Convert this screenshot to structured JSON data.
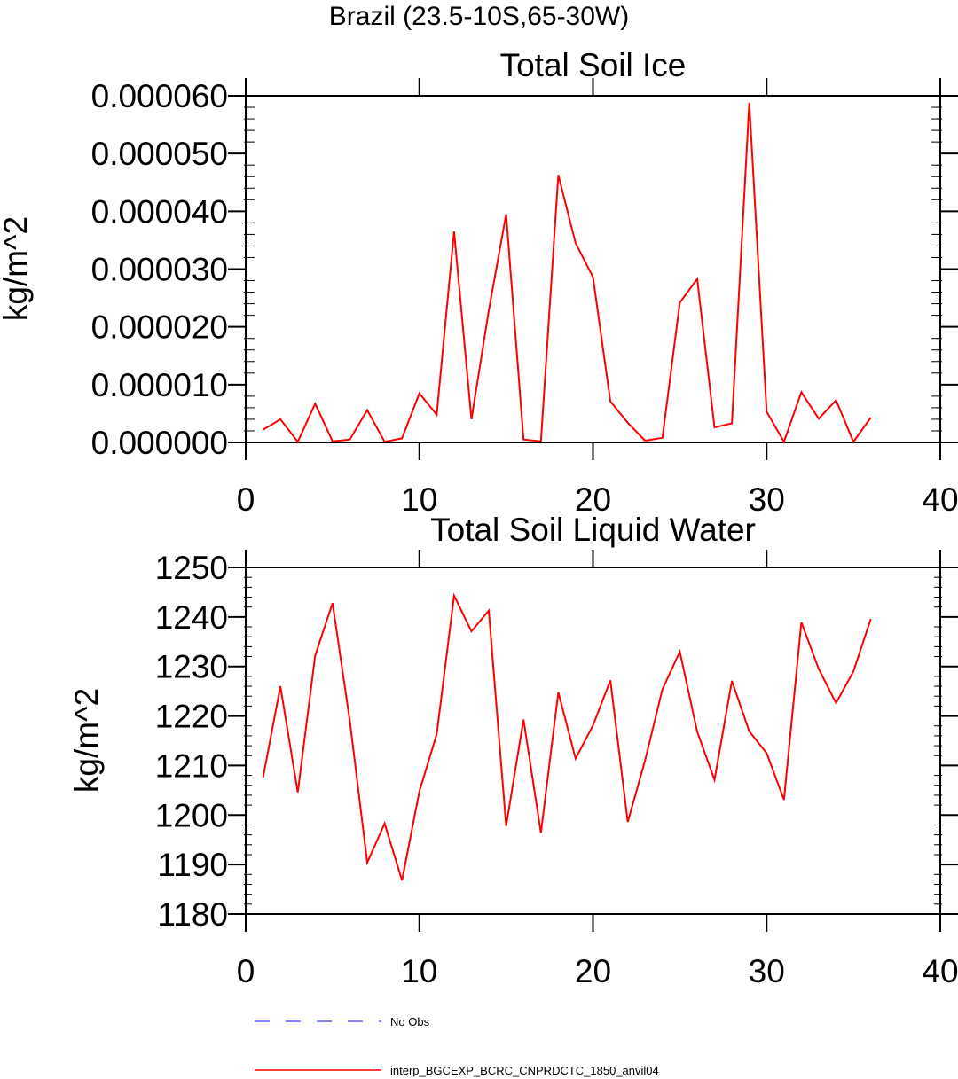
{
  "supertitle": "Brazil (23.5-10S,65-30W)",
  "chart_data": [
    {
      "type": "line",
      "title": "Total Soil Ice",
      "xlabel": "",
      "ylabel": "kg/m^2",
      "xlim": [
        0,
        40
      ],
      "ylim": [
        0,
        6e-05
      ],
      "xticks": [
        0,
        10,
        20,
        30,
        40
      ],
      "xtick_labels": [
        "0",
        "10",
        "20",
        "30",
        "40"
      ],
      "yticks": [
        0,
        1e-05,
        2e-05,
        3e-05,
        4e-05,
        5e-05,
        6e-05
      ],
      "ytick_labels": [
        "0.000000",
        "0.000010",
        "0.000020",
        "0.000030",
        "0.000040",
        "0.000050",
        "0.000060"
      ],
      "grid": false,
      "series": [
        {
          "name": "interp_BGCEXP_BCRC_CNPRDCTC_1850_anvil04",
          "color": "#ff0000",
          "x": [
            1,
            2,
            3,
            4,
            5,
            6,
            7,
            8,
            9,
            10,
            11,
            12,
            13,
            14,
            15,
            16,
            17,
            18,
            19,
            20,
            21,
            22,
            23,
            24,
            25,
            26,
            27,
            28,
            29,
            30,
            31,
            32,
            33,
            34,
            35,
            36
          ],
          "values": [
            2.2e-06,
            4e-06,
            1e-07,
            6.7e-06,
            2e-07,
            5e-07,
            5.6e-06,
            1e-07,
            7e-07,
            8.5e-06,
            4.8e-06,
            3.65e-05,
            4e-06,
            2.28e-05,
            3.95e-05,
            5e-07,
            2e-07,
            4.63e-05,
            3.45e-05,
            2.86e-05,
            7.1e-06,
            3.4e-06,
            3e-07,
            8e-07,
            2.42e-05,
            2.83e-05,
            2.6e-06,
            3.3e-06,
            5.88e-05,
            5.3e-06,
            1e-07,
            8.7e-06,
            4.1e-06,
            7.3e-06,
            1e-07,
            4.3e-06
          ]
        }
      ]
    },
    {
      "type": "line",
      "title": "Total Soil Liquid Water",
      "xlabel": "",
      "ylabel": "kg/m^2",
      "xlim": [
        0,
        40
      ],
      "ylim": [
        1180,
        1250
      ],
      "xticks": [
        0,
        10,
        20,
        30,
        40
      ],
      "xtick_labels": [
        "0",
        "10",
        "20",
        "30",
        "40"
      ],
      "yticks": [
        1180,
        1190,
        1200,
        1210,
        1220,
        1230,
        1240,
        1250
      ],
      "ytick_labels": [
        "1180",
        "1190",
        "1200",
        "1210",
        "1220",
        "1230",
        "1240",
        "1250"
      ],
      "grid": false,
      "series": [
        {
          "name": "interp_BGCEXP_BCRC_CNPRDCTC_1850_anvil04",
          "color": "#ff0000",
          "x": [
            1,
            2,
            3,
            4,
            5,
            6,
            7,
            8,
            9,
            10,
            11,
            12,
            13,
            14,
            15,
            16,
            17,
            18,
            19,
            20,
            21,
            22,
            23,
            24,
            25,
            26,
            27,
            28,
            29,
            30,
            31,
            32,
            33,
            34,
            35,
            36
          ],
          "values": [
            1207.6,
            1226,
            1204.6,
            1232.2,
            1242.8,
            1219,
            1190.4,
            1198.3,
            1186.8,
            1204.8,
            1216.3,
            1244.3,
            1237.1,
            1241.3,
            1197.8,
            1219.3,
            1196.4,
            1224.8,
            1211.4,
            1218.1,
            1227.2,
            1198.6,
            1211,
            1225.4,
            1233,
            1216.8,
            1207.1,
            1227.1,
            1216.9,
            1212.5,
            1203.1,
            1238.9,
            1229.5,
            1222.6,
            1229,
            1239.6
          ]
        }
      ]
    }
  ],
  "legend": [
    {
      "label": "No Obs",
      "color": "#5a5aff",
      "style": "dashed"
    },
    {
      "label": "interp_BGCEXP_BCRC_CNPRDCTC_1850_anvil04",
      "color": "#ff0000",
      "style": "solid"
    }
  ]
}
